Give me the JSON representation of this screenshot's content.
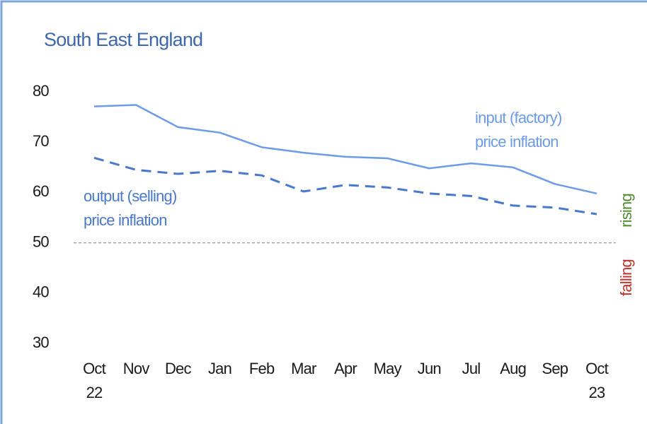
{
  "chart_data": {
    "type": "line",
    "title": "South East England",
    "categories": [
      "Oct 22",
      "Nov",
      "Dec",
      "Jan",
      "Feb",
      "Mar",
      "Apr",
      "May",
      "Jun",
      "Jul",
      "Aug",
      "Sep",
      "Oct 23"
    ],
    "series": [
      {
        "name": "input (factory) price inflation",
        "color": "#6d9be6",
        "dash": false,
        "values": [
          77.1,
          77.4,
          73.0,
          71.9,
          69.0,
          67.9,
          67.1,
          66.8,
          64.8,
          65.8,
          65.0,
          61.7,
          59.8
        ]
      },
      {
        "name": "output (selling) price inflation",
        "color": "#4a78cc",
        "dash": true,
        "values": [
          66.9,
          64.5,
          63.7,
          64.3,
          63.4,
          60.2,
          61.5,
          61.0,
          59.8,
          59.3,
          57.4,
          57.0,
          55.7
        ]
      }
    ],
    "ylim": [
      30,
      80
    ],
    "yticks": [
      30,
      40,
      50,
      60,
      70,
      80
    ],
    "grid": false,
    "reference_line": 50,
    "above_label": "rising",
    "below_label": "falling"
  }
}
